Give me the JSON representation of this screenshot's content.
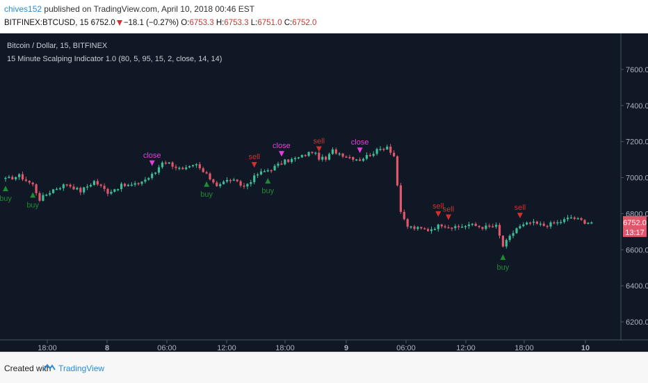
{
  "header": {
    "author": "chives152",
    "published_text": "published on TradingView.com, April 10, 2018 00:46 EST",
    "symbol": "BITFINEX:BTCUSD, 15",
    "last": "6752.0",
    "change": "−18.1 (−0.27%)",
    "o_label": "O:",
    "o_value": "6753.3",
    "h_label": "H:",
    "h_value": "6753.3",
    "l_label": "L:",
    "l_value": "6751.0",
    "c_label": "C:",
    "c_value": "6752.0"
  },
  "legend": {
    "series_title": "Bitcoin / Dollar, 15, BITFINEX",
    "indicator_title": "15 Minute Scalping Indicator 1.0 (80, 5, 95, 15, 2, close, 14, 14)"
  },
  "price_tag": {
    "price": "6752.0",
    "countdown": "13:17"
  },
  "footer": {
    "created_with": "Created with",
    "brand": "TradingView"
  },
  "colors": {
    "background": "#0f1824",
    "up": "#3cbc98",
    "down": "#e0566a",
    "buy": "#1e8a34",
    "sell": "#d32f2f",
    "close": "#e040e0",
    "axis_text": "#aab2bd",
    "grid": "#1c2633"
  },
  "chart_data": {
    "type": "candlestick",
    "title": "Bitcoin / Dollar, 15, BITFINEX",
    "ylim": [
      6100,
      7800
    ],
    "y_ticks": [
      6200,
      6400,
      6600,
      6800,
      7000,
      7200,
      7400,
      7600
    ],
    "x_tick_labels": [
      "18:00",
      "8",
      "06:00",
      "12:00",
      "18:00",
      "9",
      "06:00",
      "12:00",
      "18:00",
      "10"
    ],
    "x_tick_bold": [
      false,
      true,
      false,
      false,
      false,
      true,
      false,
      false,
      false,
      true
    ],
    "grid": false,
    "price_path": [
      [
        0,
        6990
      ],
      [
        4,
        7010
      ],
      [
        8,
        6960
      ],
      [
        10,
        6880
      ],
      [
        14,
        6935
      ],
      [
        18,
        6965
      ],
      [
        22,
        6925
      ],
      [
        26,
        6980
      ],
      [
        30,
        6920
      ],
      [
        34,
        6955
      ],
      [
        38,
        6960
      ],
      [
        42,
        7000
      ],
      [
        44,
        7030
      ],
      [
        46,
        7090
      ],
      [
        48,
        7080
      ],
      [
        52,
        7040
      ],
      [
        56,
        7070
      ],
      [
        58,
        7030
      ],
      [
        62,
        6960
      ],
      [
        66,
        6990
      ],
      [
        70,
        6950
      ],
      [
        74,
        7020
      ],
      [
        78,
        7050
      ],
      [
        82,
        7090
      ],
      [
        86,
        7110
      ],
      [
        90,
        7145
      ],
      [
        92,
        7110
      ],
      [
        94,
        7100
      ],
      [
        96,
        7150
      ],
      [
        100,
        7120
      ],
      [
        104,
        7100
      ],
      [
        108,
        7140
      ],
      [
        112,
        7175
      ],
      [
        114,
        7120
      ],
      [
        116,
        6800
      ],
      [
        118,
        6730
      ],
      [
        120,
        6720
      ],
      [
        124,
        6710
      ],
      [
        128,
        6740
      ],
      [
        132,
        6720
      ],
      [
        136,
        6740
      ],
      [
        140,
        6725
      ],
      [
        144,
        6730
      ],
      [
        146,
        6620
      ],
      [
        148,
        6670
      ],
      [
        150,
        6720
      ],
      [
        154,
        6750
      ],
      [
        158,
        6735
      ],
      [
        162,
        6750
      ],
      [
        166,
        6780
      ],
      [
        170,
        6755
      ],
      [
        172,
        6752
      ]
    ],
    "signals": [
      {
        "bar": 0,
        "kind": "buy",
        "label": "buy"
      },
      {
        "bar": 8,
        "kind": "buy",
        "label": "buy"
      },
      {
        "bar": 43,
        "kind": "close",
        "label": "close"
      },
      {
        "bar": 59,
        "kind": "buy",
        "label": "buy"
      },
      {
        "bar": 73,
        "kind": "sell",
        "label": "sell"
      },
      {
        "bar": 77,
        "kind": "buy",
        "label": "buy"
      },
      {
        "bar": 81,
        "kind": "close",
        "label": "close"
      },
      {
        "bar": 92,
        "kind": "sell",
        "label": "sell"
      },
      {
        "bar": 104,
        "kind": "close",
        "label": "close"
      },
      {
        "bar": 127,
        "kind": "sell",
        "label": "sell"
      },
      {
        "bar": 130,
        "kind": "sell",
        "label": "sell"
      },
      {
        "bar": 146,
        "kind": "buy",
        "label": "buy"
      },
      {
        "bar": 151,
        "kind": "sell",
        "label": "sell"
      }
    ]
  }
}
